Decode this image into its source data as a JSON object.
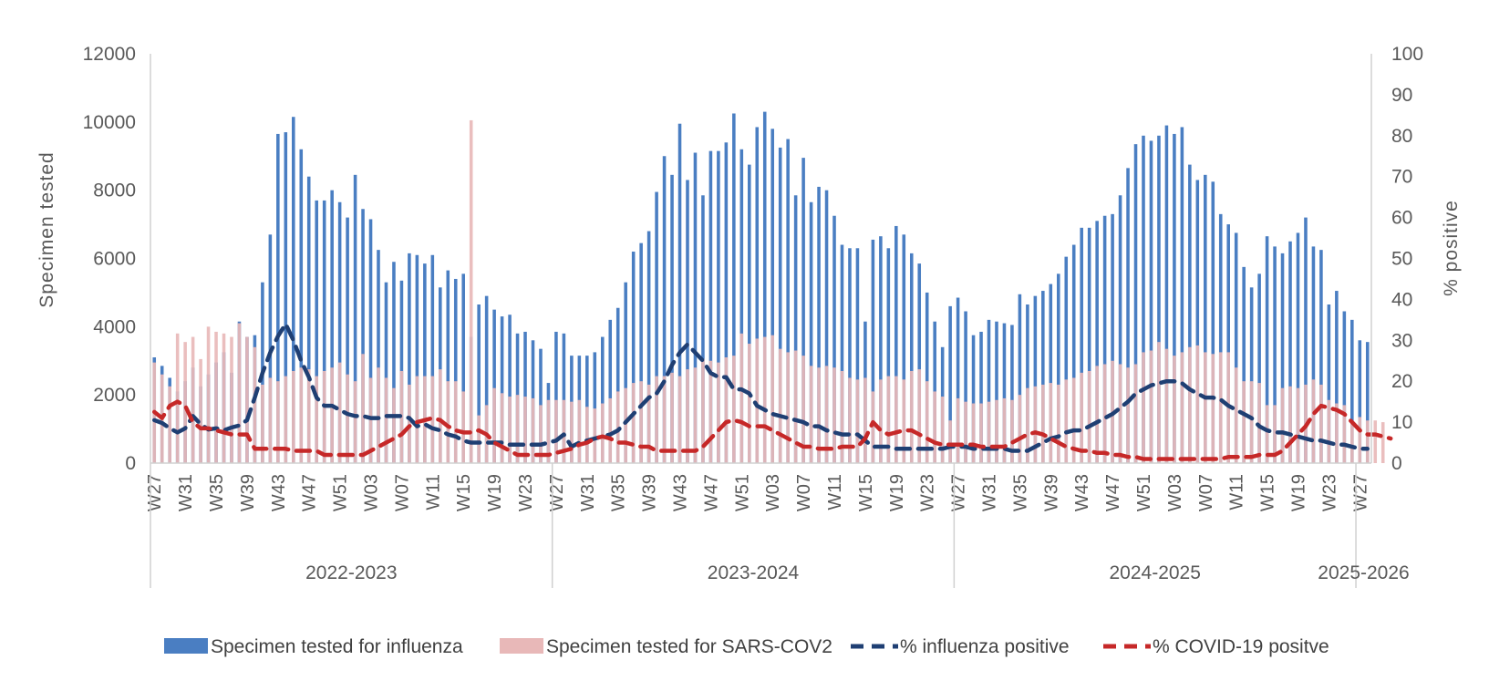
{
  "chart_data": {
    "type": "bar",
    "ylabel": "Specimen tested",
    "y2label": "% positive",
    "ylim": [
      0,
      12000
    ],
    "y2lim": [
      0,
      100
    ],
    "yticks": [
      "0",
      "2000",
      "4000",
      "6000",
      "8000",
      "10000",
      "12000"
    ],
    "y2ticks": [
      "0",
      "10",
      "20",
      "30",
      "40",
      "50",
      "60",
      "70",
      "80",
      "90",
      "100"
    ],
    "x_tick_labels": [
      "W27",
      "W31",
      "W35",
      "W39",
      "W43",
      "W47",
      "W51",
      "W03",
      "W07",
      "W11",
      "W15",
      "W19",
      "W23",
      "W27",
      "W31",
      "W35",
      "W39",
      "W43",
      "W47",
      "W51",
      "W03",
      "W07",
      "W11",
      "W15",
      "W19",
      "W23",
      "W27",
      "W31",
      "W35",
      "W39",
      "W43",
      "W47",
      "W51",
      "W03",
      "W07",
      "W11",
      "W15",
      "W19",
      "W23",
      "W27"
    ],
    "seasons": [
      {
        "label": "2022-2023",
        "start": 0,
        "count": 52
      },
      {
        "label": "2023-2024",
        "start": 52,
        "count": 52
      },
      {
        "label": "2024-2025",
        "start": 104,
        "count": 52
      },
      {
        "label": "2025-2026",
        "start": 156,
        "count": 2
      }
    ],
    "grid": false,
    "legend_position": "bottom",
    "series": [
      {
        "name": "Specimen tested for influenza",
        "kind": "bar",
        "axis": "left",
        "color": "#4a7ec2",
        "values": [
          3100,
          2850,
          2500,
          2100,
          2400,
          2800,
          2250,
          2600,
          2950,
          3250,
          2650,
          4150,
          3700,
          3750,
          5300,
          6700,
          9650,
          9700,
          10150,
          9200,
          8400,
          7700,
          7700,
          8000,
          7650,
          7200,
          8450,
          7450,
          7150,
          6250,
          5300,
          5900,
          5350,
          6150,
          6100,
          5850,
          6100,
          5150,
          5650,
          5400,
          5550,
          3700,
          4650,
          4900,
          4500,
          4300,
          4350,
          3800,
          3850,
          3600,
          3350,
          2350,
          3850,
          3800,
          3150,
          3150,
          3150,
          3250,
          3700,
          4200,
          4550,
          5300,
          6200,
          6450,
          6800,
          7950,
          9000,
          8450,
          9950,
          8300,
          9100,
          7850,
          9150,
          9150,
          9400,
          10250,
          9200,
          8750,
          9850,
          10300,
          9800,
          9250,
          9500,
          7850,
          8950,
          7650,
          8100,
          8000,
          7250,
          6400,
          6300,
          6300,
          4150,
          6550,
          6650,
          6300,
          6950,
          6700,
          6150,
          5850,
          5000,
          4150,
          3400,
          4600,
          4850,
          4450,
          3750,
          3850,
          4200,
          4150,
          4100,
          4050,
          4950,
          4650,
          4900,
          5050,
          5250,
          5550,
          6050,
          6400,
          6900,
          6900,
          7100,
          7250,
          7300,
          7850,
          8650,
          9350,
          9600,
          9450,
          9600,
          9900,
          9650,
          9850,
          8750,
          8300,
          8450,
          8250,
          7300,
          7000,
          6750,
          5750,
          5150,
          5550,
          6650,
          6350,
          6150,
          6500,
          6750,
          7200,
          6350,
          6250,
          4650,
          5050,
          4450,
          4200,
          3600,
          3550
        ]
      },
      {
        "name": "Specimen tested for SARS-COV2",
        "kind": "bar",
        "axis": "left",
        "color": "#e8b8b8",
        "values": [
          2950,
          2600,
          2250,
          3800,
          3550,
          3700,
          3050,
          4000,
          3850,
          3800,
          3700,
          4100,
          3700,
          3400,
          2300,
          2500,
          2400,
          2550,
          2700,
          2800,
          2750,
          2550,
          2700,
          2800,
          2950,
          2600,
          2400,
          3200,
          2500,
          2800,
          2500,
          2200,
          2700,
          2300,
          2550,
          2550,
          2550,
          2750,
          2400,
          2400,
          2100,
          10050,
          1400,
          1700,
          2200,
          2050,
          1950,
          2000,
          1950,
          1900,
          1700,
          1850,
          1850,
          1850,
          1800,
          1850,
          1650,
          1600,
          1750,
          1900,
          2100,
          2200,
          2350,
          2400,
          2300,
          2550,
          2550,
          2650,
          2550,
          2750,
          2800,
          3050,
          3000,
          2950,
          3100,
          3150,
          3800,
          3500,
          3650,
          3700,
          3750,
          3350,
          3250,
          3300,
          3150,
          2850,
          2800,
          2850,
          2800,
          2700,
          2500,
          2450,
          2500,
          2100,
          2450,
          2550,
          2550,
          2450,
          2700,
          2750,
          2400,
          2100,
          1950,
          1250,
          1900,
          1800,
          1750,
          1750,
          1800,
          1850,
          1900,
          1850,
          2000,
          2200,
          2250,
          2300,
          2350,
          2300,
          2450,
          2500,
          2650,
          2700,
          2850,
          2900,
          3000,
          2900,
          2800,
          2900,
          3250,
          3300,
          3550,
          3350,
          3150,
          3250,
          3400,
          3450,
          3250,
          3200,
          3250,
          3250,
          2800,
          2400,
          2400,
          2350,
          1700,
          1700,
          2200,
          2250,
          2200,
          2300,
          2450,
          2300,
          1850,
          1750,
          1700,
          1200,
          1350,
          1250,
          1250,
          1200
        ]
      },
      {
        "name": "% influenza positive",
        "kind": "line",
        "axis": "right",
        "color": "#1f3f73",
        "values": [
          10.5,
          9.8,
          8.5,
          7.5,
          8.5,
          11.5,
          9.5,
          8.2,
          8.5,
          8.0,
          8.7,
          9.2,
          10.5,
          16,
          22,
          27,
          31,
          34,
          30,
          25,
          21,
          16,
          14,
          14,
          13,
          12,
          11.5,
          11.5,
          11,
          11,
          11.5,
          11.5,
          11.5,
          11,
          9,
          9.5,
          8.5,
          8,
          7,
          6.5,
          5.5,
          5,
          5,
          5,
          5,
          5,
          4.5,
          4.5,
          4.5,
          4.5,
          4.5,
          5,
          5.5,
          7,
          4,
          5,
          5.5,
          6,
          6.5,
          7,
          8,
          10,
          12,
          14,
          16,
          17,
          20,
          24,
          27,
          29,
          27,
          25,
          22,
          21,
          21,
          18,
          18,
          17,
          14,
          13,
          12,
          11.5,
          11,
          10.5,
          10,
          9,
          9,
          8,
          7.5,
          7,
          7,
          7,
          5.5,
          4,
          4,
          4,
          3.5,
          3.5,
          3.5,
          3.5,
          3.5,
          3.5,
          3.5,
          4,
          4,
          4,
          3.5,
          3.5,
          3.5,
          3.5,
          3.5,
          3,
          3,
          3,
          4,
          5,
          6,
          6.5,
          7.5,
          8,
          8,
          9,
          10,
          11,
          12,
          13.5,
          15,
          17,
          18,
          19,
          19.5,
          20,
          20,
          19.5,
          18,
          17,
          16,
          16,
          15.5,
          14,
          13,
          12,
          11,
          9,
          8,
          7.5,
          7.5,
          7,
          6.5,
          6,
          5.5,
          5.5,
          5,
          4.5,
          4.5,
          4,
          3.5,
          3.5
        ]
      },
      {
        "name": "% COVID-19 positve",
        "kind": "line",
        "axis": "right",
        "color": "#c62828",
        "values": [
          12.5,
          11,
          14,
          15,
          14,
          10,
          8.5,
          8.5,
          8,
          7.5,
          7,
          7,
          7,
          3.5,
          3.5,
          3.5,
          3.5,
          3.5,
          3,
          3,
          3,
          3,
          2,
          2,
          2,
          2,
          2,
          2,
          3,
          4,
          5,
          6,
          7,
          9,
          10,
          10.5,
          11,
          10.5,
          9,
          8,
          7.5,
          7.5,
          8,
          7,
          5,
          4,
          3,
          2,
          2,
          2,
          2,
          2,
          2.5,
          3,
          3.5,
          4.5,
          5,
          6,
          6.5,
          6,
          5,
          5,
          4.5,
          4,
          4,
          3,
          3,
          3,
          3,
          3,
          3,
          4,
          6,
          8,
          10,
          10.5,
          10,
          9,
          9,
          9,
          8,
          7,
          6,
          5,
          4,
          4,
          3.5,
          3.5,
          3.5,
          4,
          4,
          4,
          6,
          10,
          8,
          7,
          7.5,
          8,
          8,
          7,
          6,
          5,
          4.5,
          4.5,
          4.5,
          4.5,
          4.5,
          4,
          4,
          4,
          4,
          5,
          6,
          7,
          7.5,
          7,
          6,
          5,
          4,
          3.5,
          3,
          3,
          2.5,
          2.5,
          2,
          2,
          1.5,
          1.5,
          1,
          1,
          1,
          1,
          1,
          1,
          1,
          1,
          1,
          1,
          1,
          1.5,
          1.5,
          1.5,
          1.5,
          2,
          2,
          2,
          3,
          5,
          7,
          9,
          12,
          14,
          13.5,
          13,
          12,
          10,
          8,
          7,
          7,
          6.5,
          6
        ]
      }
    ]
  },
  "legend": {
    "influenza_bars": "Specimen tested for influenza",
    "sars_bars": "Specimen tested for SARS-COV2",
    "flu_line": "% influenza positive",
    "covid_line": "% COVID-19 positve"
  }
}
